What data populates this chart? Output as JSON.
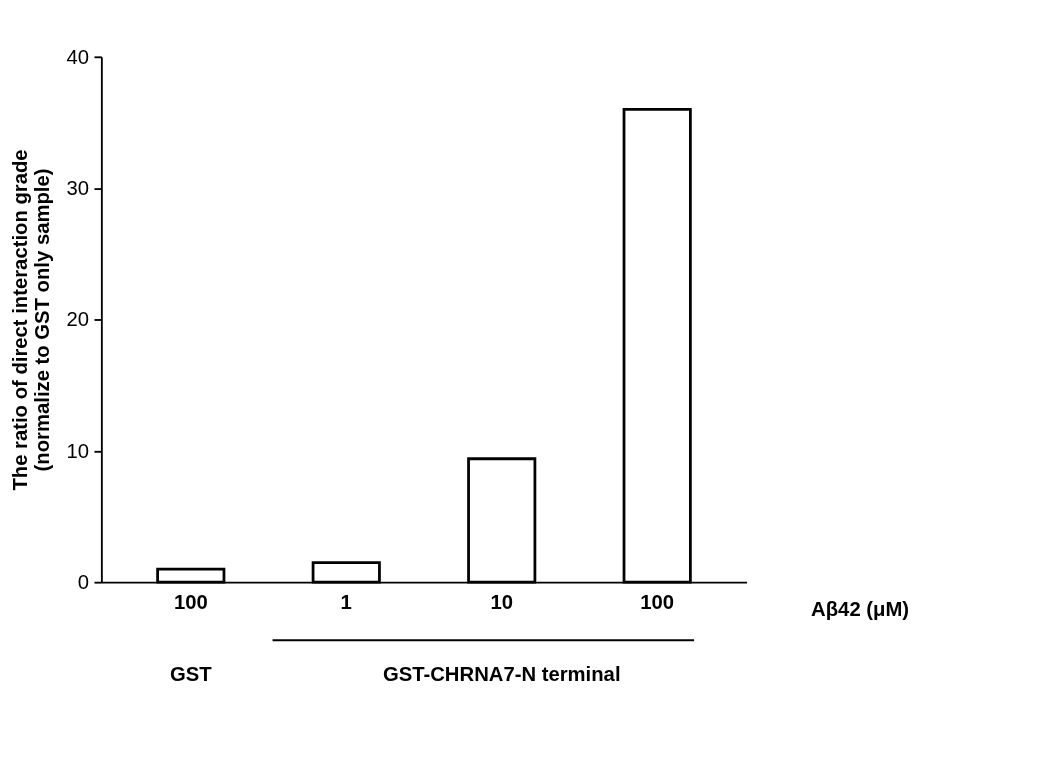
{
  "chart_data": {
    "type": "bar",
    "ylabel": "The ratio of direct interaction grade\n(normalize to GST only sample)",
    "categories": [
      "100",
      "1",
      "10",
      "100"
    ],
    "values": [
      1.0,
      1.5,
      9.4,
      36.0
    ],
    "color": "#ffffff",
    "ylim": [
      0,
      40
    ],
    "yticks": [
      0,
      10,
      20,
      30,
      40
    ],
    "grid": false,
    "annotations": [
      "Aβ42 (μM)",
      "GST",
      "GST-CHRNA7-N terminal"
    ]
  }
}
